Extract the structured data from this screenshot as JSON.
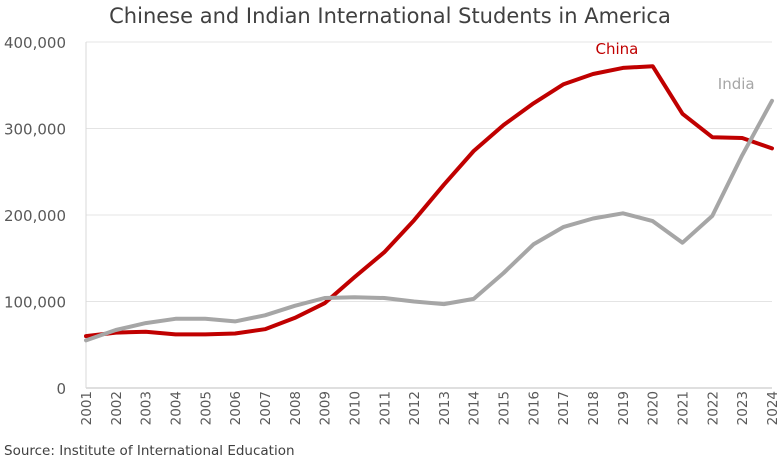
{
  "chart_data": {
    "type": "line",
    "title": "Chinese and Indian International Students in America",
    "source": "Source: Institute of International Education",
    "xlabel": "",
    "ylabel": "",
    "ylim": [
      0,
      400000
    ],
    "yticks": [
      0,
      100000,
      200000,
      300000,
      400000
    ],
    "ytick_labels": [
      "0",
      "100,000",
      "200,000",
      "300,000",
      "400,000"
    ],
    "categories": [
      "2001",
      "2002",
      "2003",
      "2004",
      "2005",
      "2006",
      "2007",
      "2008",
      "2009",
      "2010",
      "2011",
      "2012",
      "2013",
      "2014",
      "2015",
      "2016",
      "2017",
      "2018",
      "2019",
      "2020",
      "2021",
      "2022",
      "2023",
      "2024"
    ],
    "grid": "horizontal",
    "series": [
      {
        "name": "China",
        "color": "#c00000",
        "values": [
          60000,
          64000,
          65000,
          62000,
          62000,
          63000,
          68000,
          81000,
          98000,
          128000,
          157000,
          194000,
          235000,
          274000,
          304000,
          329000,
          351000,
          363000,
          370000,
          372000,
          317000,
          290000,
          289000,
          277000
        ]
      },
      {
        "name": "India",
        "color": "#a6a6a6",
        "values": [
          55000,
          67000,
          75000,
          80000,
          80000,
          77000,
          84000,
          95000,
          104000,
          105000,
          104000,
          100000,
          97000,
          103000,
          133000,
          166000,
          186000,
          196000,
          202000,
          193000,
          168000,
          199000,
          269000,
          332000
        ]
      }
    ]
  }
}
